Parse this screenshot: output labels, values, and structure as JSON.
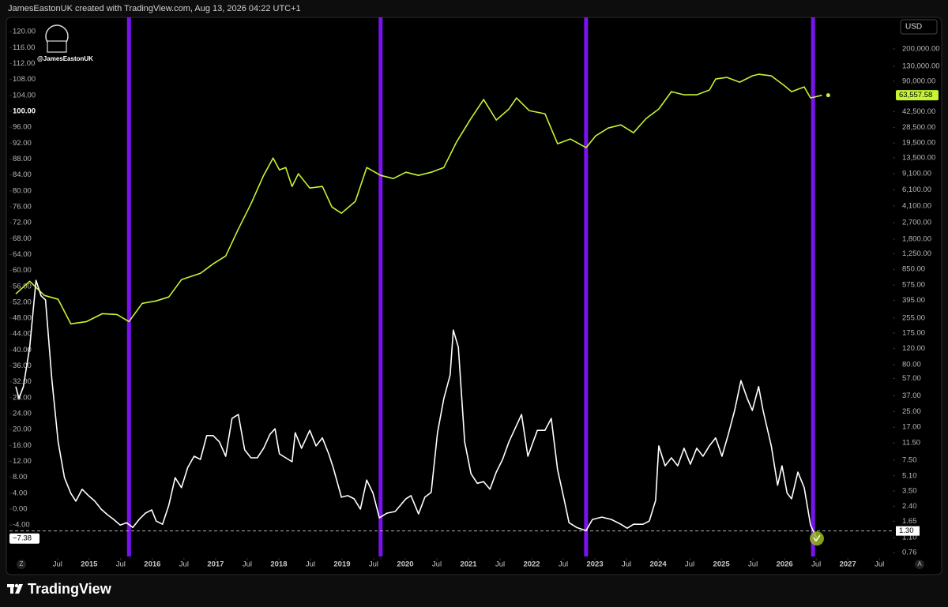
{
  "chart_data": {
    "type": "line",
    "header": "JamesEastonUK created with TradingView.com, Aug 13, 2026 04:22 UTC+1",
    "watermark": "@JamesEastonUK",
    "currency": "USD",
    "brand": "TradingView",
    "buttons": [
      "Z",
      "A"
    ],
    "xlim": [
      2013.74,
      2027.71
    ],
    "xticks": [
      {
        "value": 2014.5,
        "label": "Jul"
      },
      2015,
      {
        "value": 2015.5,
        "label": "Jul"
      },
      2016,
      {
        "value": 2016.5,
        "label": "Jul"
      },
      2017,
      {
        "value": 2017.5,
        "label": "Jul"
      },
      2018,
      {
        "value": 2018.5,
        "label": "Jul"
      },
      2019,
      {
        "value": 2019.5,
        "label": "Jul"
      },
      2020,
      {
        "value": 2020.5,
        "label": "Jul"
      },
      2021,
      {
        "value": 2021.5,
        "label": "Jul"
      },
      2022,
      {
        "value": 2022.5,
        "label": "Jul"
      },
      2023,
      {
        "value": 2023.5,
        "label": "Jul"
      },
      2024,
      {
        "value": 2024.5,
        "label": "Jul"
      },
      2025,
      {
        "value": 2025.5,
        "label": "Jul"
      },
      2026,
      {
        "value": 2026.5,
        "label": "Jul"
      },
      2027,
      {
        "value": 2027.5,
        "label": "Jul"
      }
    ],
    "ylim": [
      -11.9,
      123.6
    ],
    "yticks": [
      {
        "value": 120,
        "label": "120.00"
      },
      {
        "value": 116,
        "label": "116.00"
      },
      {
        "value": 112,
        "label": "112.00"
      },
      {
        "value": 108,
        "label": "108.00"
      },
      {
        "value": 104,
        "label": "104.00"
      },
      {
        "value": 100,
        "label": "100.00"
      },
      {
        "value": 96,
        "label": "96.00"
      },
      {
        "value": 92,
        "label": "92.00"
      },
      {
        "value": 88,
        "label": "88.00"
      },
      {
        "value": 84,
        "label": "84.00"
      },
      {
        "value": 80,
        "label": "80.00"
      },
      {
        "value": 76,
        "label": "76.00"
      },
      {
        "value": 72,
        "label": "72.00"
      },
      {
        "value": 68,
        "label": "68.00"
      },
      {
        "value": 64,
        "label": "64.00"
      },
      {
        "value": 60,
        "label": "60.00"
      },
      {
        "value": 56,
        "label": "56.00"
      },
      {
        "value": 52,
        "label": "52.00"
      },
      {
        "value": 48,
        "label": "48.00"
      },
      {
        "value": 44,
        "label": "44.00"
      },
      {
        "value": 40,
        "label": "40.00"
      },
      {
        "value": 36,
        "label": "36.00"
      },
      {
        "value": 32,
        "label": "32.00"
      },
      {
        "value": 28,
        "label": "28.00"
      },
      {
        "value": 24,
        "label": "24.00"
      },
      {
        "value": 20,
        "label": "20.00"
      },
      {
        "value": 16,
        "label": "16.00"
      },
      {
        "value": 12,
        "label": "12.00"
      },
      {
        "value": 8,
        "label": "8.00"
      },
      {
        "value": 4,
        "label": "4.00"
      },
      {
        "value": 0,
        "label": "0.00"
      },
      {
        "value": -4,
        "label": "-4.00"
      }
    ],
    "y2log": true,
    "y2lim": [
      0.69,
      438000
    ],
    "y2ticks": [
      {
        "value": 200000,
        "label": "200,000.00"
      },
      {
        "value": 130000,
        "label": "130,000.00"
      },
      {
        "value": 90000,
        "label": "90,000.00"
      },
      {
        "value": 42500,
        "label": "42,500.00"
      },
      {
        "value": 28500,
        "label": "28,500.00"
      },
      {
        "value": 19500,
        "label": "19,500.00"
      },
      {
        "value": 13500,
        "label": "13,500.00"
      },
      {
        "value": 9100,
        "label": "9,100.00"
      },
      {
        "value": 6100,
        "label": "6,100.00"
      },
      {
        "value": 4100,
        "label": "4,100.00"
      },
      {
        "value": 2700,
        "label": "2,700.00"
      },
      {
        "value": 1800,
        "label": "1,800.00"
      },
      {
        "value": 1250,
        "label": "1,250.00"
      },
      {
        "value": 850,
        "label": "850.00"
      },
      {
        "value": 575,
        "label": "575.00"
      },
      {
        "value": 395,
        "label": "395.00"
      },
      {
        "value": 255,
        "label": "255.00"
      },
      {
        "value": 175,
        "label": "175.00"
      },
      {
        "value": 120,
        "label": "120.00"
      },
      {
        "value": 80,
        "label": "80.00"
      },
      {
        "value": 57,
        "label": "57.00"
      },
      {
        "value": 37,
        "label": "37.00"
      },
      {
        "value": 25,
        "label": "25.00"
      },
      {
        "value": 17,
        "label": "17.00"
      },
      {
        "value": 11.5,
        "label": "11.50"
      },
      {
        "value": 7.5,
        "label": "7.50"
      },
      {
        "value": 5.1,
        "label": "5.10"
      },
      {
        "value": 3.5,
        "label": "3.50"
      },
      {
        "value": 2.4,
        "label": "2.40"
      },
      {
        "value": 1.65,
        "label": "1.65"
      },
      {
        "value": 1.1,
        "label": "1.10"
      },
      {
        "value": 0.76,
        "label": "0.76"
      }
    ],
    "crosshair": {
      "value": 1.3,
      "label": "1.30"
    },
    "cycle_lines": {
      "color": "#7a12f0",
      "x": [
        2015.63,
        2019.61,
        2022.86,
        2026.45
      ]
    },
    "series": [
      {
        "axis": "y2",
        "color": "#c6f432",
        "x": [
          2013.84,
          2014.06,
          2014.29,
          2014.51,
          2014.71,
          2014.96,
          2015.21,
          2015.44,
          2015.63,
          2015.84,
          2016.06,
          2016.26,
          2016.46,
          2016.76,
          2016.96,
          2017.16,
          2017.36,
          2017.56,
          2017.76,
          2017.91,
          2018.01,
          2018.11,
          2018.21,
          2018.31,
          2018.49,
          2018.69,
          2018.84,
          2018.99,
          2019.21,
          2019.39,
          2019.61,
          2019.81,
          2020.01,
          2020.21,
          2020.41,
          2020.61,
          2020.81,
          2021.04,
          2021.24,
          2021.44,
          2021.64,
          2021.76,
          2021.96,
          2022.21,
          2022.41,
          2022.61,
          2022.86,
          2023.01,
          2023.21,
          2023.41,
          2023.61,
          2023.81,
          2024.01,
          2024.21,
          2024.41,
          2024.61,
          2024.81,
          2024.91,
          2025.09,
          2025.29,
          2025.49,
          2025.59,
          2025.79,
          2025.99,
          2026.11,
          2026.31,
          2026.41,
          2026.59
        ],
        "values": [
          463,
          633,
          446,
          404,
          220,
          233,
          283,
          278,
          233,
          366,
          389,
          429,
          658,
          770,
          974,
          1183,
          2308,
          4315,
          8730,
          13415,
          9985,
          10600,
          6637,
          9079,
          6380,
          6637,
          3990,
          3411,
          4581,
          10600,
          8730,
          8073,
          9441,
          8730,
          9441,
          10600,
          19860,
          35740,
          57150,
          34360,
          45200,
          59430,
          43470,
          40190,
          19100,
          21480,
          17320,
          23180,
          28200,
          30500,
          25070,
          35740,
          45200,
          69520,
          64270,
          64270,
          72280,
          95050,
          98840,
          87890,
          102800,
          106900,
          102800,
          81260,
          69520,
          78150,
          59430,
          63557.58
        ],
        "last_label": {
          "value": 63557.58,
          "label": "63,557.58"
        }
      },
      {
        "axis": "y",
        "color": "#ffffff",
        "x": [
          2013.84,
          2013.89,
          2013.96,
          2014.06,
          2014.16,
          2014.24,
          2014.31,
          2014.41,
          2014.51,
          2014.61,
          2014.71,
          2014.79,
          2014.89,
          2014.99,
          2015.09,
          2015.19,
          2015.29,
          2015.39,
          2015.49,
          2015.59,
          2015.69,
          2015.79,
          2015.89,
          2015.99,
          2016.06,
          2016.16,
          2016.26,
          2016.36,
          2016.46,
          2016.56,
          2016.66,
          2016.76,
          2016.86,
          2016.96,
          2017.06,
          2017.16,
          2017.26,
          2017.36,
          2017.46,
          2017.56,
          2017.66,
          2017.76,
          2017.86,
          2017.94,
          2018.01,
          2018.11,
          2018.21,
          2018.26,
          2018.36,
          2018.49,
          2018.59,
          2018.69,
          2018.79,
          2018.86,
          2018.99,
          2019.09,
          2019.19,
          2019.29,
          2019.39,
          2019.49,
          2019.59,
          2019.71,
          2019.84,
          2020.01,
          2020.09,
          2020.21,
          2020.31,
          2020.41,
          2020.51,
          2020.61,
          2020.71,
          2020.76,
          2020.84,
          2020.94,
          2021.04,
          2021.14,
          2021.24,
          2021.34,
          2021.44,
          2021.54,
          2021.64,
          2021.84,
          2021.94,
          2022.09,
          2022.21,
          2022.31,
          2022.41,
          2022.51,
          2022.59,
          2022.71,
          2022.86,
          2022.96,
          2023.11,
          2023.26,
          2023.41,
          2023.51,
          2023.61,
          2023.76,
          2023.86,
          2023.96,
          2024.01,
          2024.11,
          2024.21,
          2024.31,
          2024.41,
          2024.51,
          2024.61,
          2024.71,
          2024.81,
          2024.91,
          2025.01,
          2025.11,
          2025.21,
          2025.31,
          2025.41,
          2025.49,
          2025.59,
          2025.66,
          2025.79,
          2025.89,
          2025.96,
          2026.04,
          2026.11,
          2026.21,
          2026.31,
          2026.41,
          2026.51
        ],
        "values": [
          30.8,
          27.8,
          30.8,
          40.7,
          57.5,
          53.6,
          52.6,
          32.7,
          16.9,
          7.9,
          4.0,
          2.0,
          5.0,
          3.4,
          2.0,
          0.0,
          -1.4,
          -2.6,
          -4.0,
          -3.4,
          -4.6,
          -2.6,
          -1.0,
          -0.2,
          -3.0,
          -3.8,
          1.0,
          7.9,
          5.4,
          10.5,
          13.3,
          12.5,
          18.5,
          18.5,
          16.9,
          13.3,
          22.8,
          23.8,
          14.9,
          12.9,
          12.9,
          15.3,
          18.8,
          20.2,
          13.9,
          12.9,
          11.9,
          19.2,
          15.3,
          19.8,
          15.9,
          17.9,
          13.9,
          10.5,
          3.0,
          3.4,
          2.6,
          0.0,
          7.3,
          4.0,
          -2.2,
          -1.0,
          -0.6,
          2.6,
          3.4,
          -1.2,
          3.0,
          4.2,
          19.2,
          27.8,
          33.7,
          45.0,
          40.7,
          16.9,
          8.9,
          6.5,
          6.9,
          5.0,
          9.3,
          12.5,
          16.9,
          23.8,
          13.3,
          19.8,
          19.8,
          22.8,
          9.9,
          2.6,
          -3.4,
          -4.6,
          -5.4,
          -2.6,
          -2.0,
          -2.6,
          -3.8,
          -4.8,
          -3.8,
          -3.8,
          -3.0,
          2.2,
          15.9,
          10.9,
          12.9,
          10.9,
          15.3,
          11.3,
          15.3,
          13.3,
          15.9,
          17.9,
          13.3,
          18.8,
          24.8,
          32.3,
          27.8,
          24.8,
          30.8,
          24.8,
          15.9,
          6.0,
          10.9,
          4.0,
          2.6,
          9.3,
          5.4,
          -4.0,
          -7.38
        ],
        "last_label": {
          "value": -7.38,
          "label": "−7.38"
        }
      }
    ]
  }
}
